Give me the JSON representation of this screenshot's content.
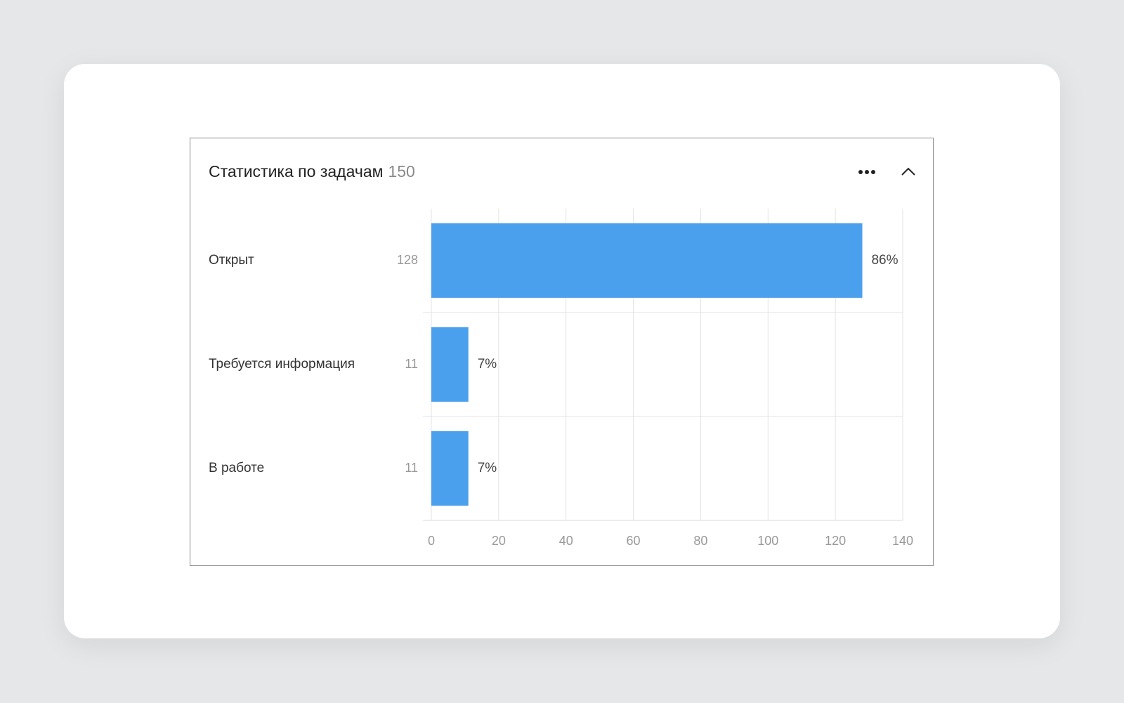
{
  "chart_data": {
    "type": "bar",
    "orientation": "horizontal",
    "title": "Статистика по задачам",
    "total": 150,
    "categories": [
      "Открыт",
      "Требуется информация",
      "В работе"
    ],
    "values": [
      128,
      11,
      11
    ],
    "percent_labels": [
      "86%",
      "7%",
      "7%"
    ],
    "color": "#4ba0ee",
    "xlim": [
      0,
      140
    ],
    "xticks": [
      0,
      20,
      40,
      60,
      80,
      100,
      120,
      140
    ],
    "grid": true
  }
}
